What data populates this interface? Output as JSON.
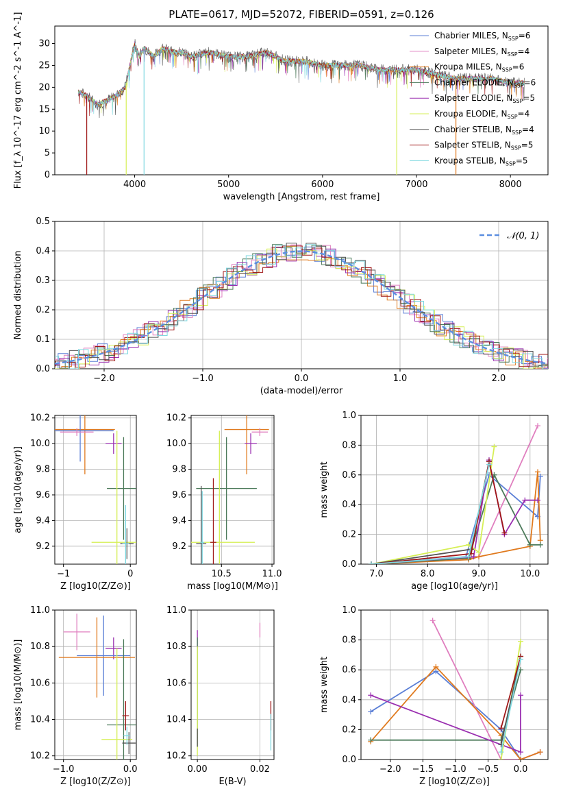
{
  "figure_title": "PLATE=0617, MJD=52072, FIBERID=0591, z=0.126",
  "palette": {
    "Chabrier MILES": "#5b7fd6",
    "Salpeter MILES": "#e07fbf",
    "Kroupa MILES": "#e07a1e",
    "Chabrier ELODIE": "#4c7a5a",
    "Salpeter ELODIE": "#9a2fb0",
    "Kroupa ELODIE": "#d6ef55",
    "Chabrier STELIB": "#555555",
    "Salpeter STELIB": "#a01818",
    "Kroupa STELIB": "#7fd8e0",
    "normal": "#5b8ee0"
  },
  "chart_data": [
    {
      "id": "spectrum",
      "type": "line",
      "xlabel": "wavelength [Angstrom, rest frame]",
      "ylabel": "Flux [f_λ 10^-17 erg cm^-2 s^-1 A^-1]",
      "xlim": [
        3150,
        8400
      ],
      "ylim": [
        0,
        34
      ],
      "xticks": [
        4000,
        5000,
        6000,
        7000,
        8000
      ],
      "yticks": [
        0,
        5,
        10,
        15,
        20,
        25,
        30
      ],
      "legend": [
        {
          "name": "Chabrier MILES",
          "nssp": "6"
        },
        {
          "name": "Salpeter MILES",
          "nssp": "4"
        },
        {
          "name": "Kroupa MILES",
          "nssp": "6"
        },
        {
          "name": "Chabrier ELODIE",
          "nssp": "6"
        },
        {
          "name": "Salpeter ELODIE",
          "nssp": "5"
        },
        {
          "name": "Kroupa ELODIE",
          "nssp": "4"
        },
        {
          "name": "Chabrier STELIB",
          "nssp": "4"
        },
        {
          "name": "Salpeter STELIB",
          "nssp": "5"
        },
        {
          "name": "Kroupa STELIB",
          "nssp": "5"
        }
      ],
      "legend_position": "top-right",
      "data_trace": {
        "x": [
          3400,
          3500,
          3600,
          3700,
          3800,
          3900,
          3950,
          4000,
          4050,
          4100,
          4200,
          4300,
          4400,
          4500,
          4600,
          4800,
          5000,
          5200,
          5400,
          5600,
          5800,
          6000,
          6200,
          6400,
          6600,
          6800,
          7000,
          7200,
          7400,
          7600,
          7800,
          8000,
          8150
        ],
        "y": [
          19,
          18,
          16,
          17,
          18,
          20,
          25,
          30,
          27,
          29,
          27,
          29,
          28,
          28,
          27,
          28,
          27,
          27,
          28,
          26,
          26,
          25,
          25,
          25,
          24,
          24,
          24,
          23,
          22,
          22,
          22,
          21,
          21
        ]
      },
      "drops": [
        {
          "x": 3490,
          "y": 0
        },
        {
          "x": 3910,
          "y": 0
        },
        {
          "x": 4100,
          "y": 0
        },
        {
          "x": 6790,
          "y": 0
        },
        {
          "x": 7420,
          "y": 0
        }
      ]
    },
    {
      "id": "residuals",
      "type": "step",
      "xlabel": "(data-model)/error",
      "ylabel": "Normed distribution",
      "xlim": [
        -2.5,
        2.5
      ],
      "ylim": [
        0,
        0.5
      ],
      "xticks": [
        -2,
        -1,
        0,
        1,
        2
      ],
      "yticks": [
        0.0,
        0.1,
        0.2,
        0.3,
        0.4,
        0.5
      ],
      "legend": [
        {
          "name": "𝒩(0, 1)"
        }
      ],
      "legend_position": "top-right",
      "curve": "normal(0,1)"
    },
    {
      "id": "age_vs_Z",
      "type": "errorbar",
      "xlabel": "Z [log10(Z/Z⊙)]",
      "ylabel": "age  [log10(age/yr)]",
      "xlim": [
        -1.13,
        0.09
      ],
      "ylim": [
        9.06,
        10.22
      ],
      "xticks": [
        -1,
        0
      ],
      "yticks": [
        9.2,
        9.4,
        9.6,
        9.8,
        10.0,
        10.2
      ],
      "points": [
        {
          "model": "Kroupa MILES",
          "x": -0.68,
          "xerr": 0.45,
          "y": 10.11,
          "yerr": 0.35
        },
        {
          "model": "Chabrier MILES",
          "x": -0.75,
          "xerr": 0.5,
          "y": 10.1,
          "yerr": 0.24
        },
        {
          "model": "Salpeter MILES",
          "x": -0.8,
          "xerr": 0.25,
          "y": 10.09,
          "yerr": 0.03
        },
        {
          "model": "Salpeter ELODIE",
          "x": -0.25,
          "xerr": 0.12,
          "y": 10.0,
          "yerr": 0.08
        },
        {
          "model": "Chabrier ELODIE",
          "x": -0.1,
          "xerr": 0.25,
          "y": 9.65,
          "yerr": 0.4
        },
        {
          "model": "Kroupa ELODIE",
          "x": -0.2,
          "xerr": 0.38,
          "y": 9.23,
          "yerr": 0.87
        },
        {
          "model": "Chabrier STELIB",
          "x": -0.05,
          "xerr": 0.1,
          "y": 9.22,
          "yerr": 0.12
        },
        {
          "model": "Kroupa STELIB",
          "x": -0.07,
          "xerr": 0.05,
          "y": 9.22,
          "yerr": 0.3
        }
      ]
    },
    {
      "id": "age_vs_mass",
      "type": "errorbar",
      "xlabel": "mass [log10(M/M⊙)]",
      "ylabel": "",
      "xlim": [
        10.2,
        11.02
      ],
      "ylim": [
        9.06,
        10.22
      ],
      "xticks": [
        10.5,
        11.0
      ],
      "yticks": [
        9.2,
        9.4,
        9.6,
        9.8,
        10.0,
        10.2
      ],
      "points": [
        {
          "model": "Kroupa MILES",
          "x": 10.75,
          "xerr": 0.22,
          "y": 10.11,
          "yerr": 0.35
        },
        {
          "model": "Salpeter MILES",
          "x": 10.88,
          "xerr": 0.08,
          "y": 10.09,
          "yerr": 0.03
        },
        {
          "model": "Salpeter ELODIE",
          "x": 10.79,
          "xerr": 0.06,
          "y": 10.0,
          "yerr": 0.08
        },
        {
          "model": "Chabrier ELODIE",
          "x": 10.55,
          "xerr": 0.3,
          "y": 9.65,
          "yerr": 0.4
        },
        {
          "model": "Kroupa ELODIE",
          "x": 10.48,
          "xerr": 0.35,
          "y": 9.23,
          "yerr": 0.87
        },
        {
          "model": "Chabrier STELIB",
          "x": 10.3,
          "xerr": 0.05,
          "y": 9.22,
          "yerr": 0.45
        },
        {
          "model": "Salpeter STELIB",
          "x": 10.42,
          "xerr": 0.03,
          "y": 9.23,
          "yerr": 0.5
        },
        {
          "model": "Kroupa STELIB",
          "x": 10.31,
          "xerr": 0.02,
          "y": 9.23,
          "yerr": 0.4
        }
      ]
    },
    {
      "id": "mass_weight_vs_age",
      "type": "line",
      "xlabel": "age  [log10(age/yr)]",
      "ylabel": "mass weight",
      "xlim": [
        6.7,
        10.35
      ],
      "ylim": [
        0,
        1
      ],
      "xticks": [
        7,
        8,
        9,
        10
      ],
      "yticks": [
        0.0,
        0.2,
        0.4,
        0.6,
        0.8,
        1.0
      ],
      "series": [
        {
          "model": "Chabrier MILES",
          "x": [
            6.9,
            8.0,
            8.75,
            9.2,
            10.15,
            10.2
          ],
          "y": [
            0.0,
            0.03,
            0.05,
            0.6,
            0.32,
            0.59
          ]
        },
        {
          "model": "Salpeter MILES",
          "x": [
            6.9,
            8.8,
            9.0,
            10.15
          ],
          "y": [
            0.0,
            0.04,
            0.05,
            0.93
          ]
        },
        {
          "model": "Kroupa MILES",
          "x": [
            6.9,
            8.8,
            9.0,
            10.0,
            10.15,
            10.2
          ],
          "y": [
            0.0,
            0.03,
            0.05,
            0.12,
            0.62,
            0.16
          ]
        },
        {
          "model": "Chabrier ELODIE",
          "x": [
            6.9,
            8.8,
            9.3,
            10.0,
            10.2
          ],
          "y": [
            0.0,
            0.04,
            0.6,
            0.13,
            0.13
          ]
        },
        {
          "model": "Salpeter ELODIE",
          "x": [
            6.9,
            8.9,
            9.2,
            9.5,
            9.9,
            10.15
          ],
          "y": [
            0.0,
            0.05,
            0.7,
            0.2,
            0.43,
            0.43
          ]
        },
        {
          "model": "Kroupa ELODIE",
          "x": [
            6.9,
            8.8,
            9.0,
            9.3
          ],
          "y": [
            0.0,
            0.13,
            0.08,
            0.79
          ]
        },
        {
          "model": "Chabrier STELIB",
          "x": [
            6.9,
            8.85,
            9.2
          ],
          "y": [
            0.0,
            0.1,
            0.69
          ]
        },
        {
          "model": "Salpeter STELIB",
          "x": [
            6.9,
            8.85,
            9.2,
            9.5
          ],
          "y": [
            0.0,
            0.07,
            0.69,
            0.21
          ]
        },
        {
          "model": "Kroupa STELIB",
          "x": [
            6.9,
            8.8,
            9.2
          ],
          "y": [
            0.0,
            0.05,
            0.67
          ]
        }
      ]
    },
    {
      "id": "mass_vs_Z",
      "type": "errorbar",
      "xlabel": "Z [log10(Z/Z⊙)]",
      "ylabel": "mass [log10(M/M⊙)]",
      "xlim": [
        -1.13,
        0.09
      ],
      "ylim": [
        10.18,
        11.0
      ],
      "xticks": [
        -1,
        0
      ],
      "yticks": [
        10.2,
        10.4,
        10.6,
        10.8,
        11.0
      ],
      "points": [
        {
          "model": "Salpeter MILES",
          "x": -0.8,
          "xerr": 0.2,
          "y": 10.88,
          "yerr": 0.1
        },
        {
          "model": "Salpeter ELODIE",
          "x": -0.25,
          "xerr": 0.12,
          "y": 10.79,
          "yerr": 0.06
        },
        {
          "model": "Chabrier MILES",
          "x": -0.4,
          "xerr": 0.4,
          "y": 10.75,
          "yerr": 0.22
        },
        {
          "model": "Kroupa MILES",
          "x": -0.5,
          "xerr": 0.57,
          "y": 10.74,
          "yerr": 0.22
        },
        {
          "model": "Chabrier ELODIE",
          "x": -0.1,
          "xerr": 0.25,
          "y": 10.37,
          "yerr": 0.47
        },
        {
          "model": "Kroupa ELODIE",
          "x": -0.2,
          "xerr": 0.23,
          "y": 10.29,
          "yerr": 0.5
        },
        {
          "model": "Chabrier STELIB",
          "x": -0.02,
          "xerr": 0.1,
          "y": 10.27,
          "yerr": 0.06
        },
        {
          "model": "Salpeter STELIB",
          "x": -0.07,
          "xerr": 0.05,
          "y": 10.42,
          "yerr": 0.08
        },
        {
          "model": "Kroupa STELIB",
          "x": -0.05,
          "xerr": 0.05,
          "y": 10.31,
          "yerr": 0.05
        }
      ]
    },
    {
      "id": "mass_vs_ebv",
      "type": "errorbar",
      "xlabel": "E(B-V)",
      "ylabel": "",
      "xlim": [
        -0.002,
        0.0245
      ],
      "ylim": [
        10.18,
        11.0
      ],
      "xticks": [
        0.0,
        0.02
      ],
      "yticks": [
        10.2,
        10.4,
        10.6,
        10.8,
        11.0
      ],
      "points": [
        {
          "model": "Salpeter MILES",
          "x": 0.02,
          "xerr": 0.0001,
          "y": 10.89,
          "yerr": 0.04
        },
        {
          "model": "Salpeter ELODIE",
          "x": 0.0,
          "xerr": 0.0001,
          "y": 10.84,
          "yerr": 0.05
        },
        {
          "model": "Chabrier ELODIE",
          "x": 0.0,
          "xerr": 0.0001,
          "y": 10.55,
          "yerr": 0.3
        },
        {
          "model": "Kroupa ELODIE",
          "x": 0.0,
          "xerr": 0.0001,
          "y": 10.5,
          "yerr": 0.3
        },
        {
          "model": "Salpeter STELIB",
          "x": 0.0235,
          "xerr": 0.0001,
          "y": 10.42,
          "yerr": 0.08
        },
        {
          "model": "Kroupa STELIB",
          "x": 0.0235,
          "xerr": 0.0001,
          "y": 10.33,
          "yerr": 0.1
        },
        {
          "model": "Chabrier STELIB",
          "x": 0.0,
          "xerr": 0.0001,
          "y": 10.3,
          "yerr": 0.05
        }
      ]
    },
    {
      "id": "mass_weight_vs_Z",
      "type": "line",
      "xlabel": "Z [log10(Z/Z⊙)]",
      "ylabel": "mass weight",
      "xlim": [
        -2.45,
        0.42
      ],
      "ylim": [
        0,
        1
      ],
      "xticks": [
        -2.0,
        -1.5,
        -1.0,
        -0.5,
        0.0
      ],
      "yticks": [
        0.0,
        0.2,
        0.4,
        0.6,
        0.8,
        1.0
      ],
      "series": [
        {
          "model": "Chabrier MILES",
          "x": [
            -2.3,
            -1.3,
            -0.3,
            0.0,
            0.3
          ],
          "y": [
            0.32,
            0.59,
            0.2,
            0.0,
            0.05
          ]
        },
        {
          "model": "Salpeter MILES",
          "x": [
            -1.35,
            -0.3,
            0.0,
            0.3
          ],
          "y": [
            0.93,
            0.0,
            0.0,
            0.05
          ]
        },
        {
          "model": "Kroupa MILES",
          "x": [
            -2.3,
            -1.3,
            -0.3,
            0.0,
            0.3
          ],
          "y": [
            0.12,
            0.62,
            0.16,
            0.0,
            0.05
          ]
        },
        {
          "model": "Chabrier ELODIE",
          "x": [
            -2.3,
            -0.3,
            0.0
          ],
          "y": [
            0.13,
            0.13,
            0.6
          ]
        },
        {
          "model": "Salpeter ELODIE",
          "x": [
            -2.3,
            0.0,
            0.0
          ],
          "y": [
            0.43,
            0.05,
            0.43
          ]
        },
        {
          "model": "Kroupa ELODIE",
          "x": [
            -0.3,
            0.0
          ],
          "y": [
            0.0,
            0.79
          ]
        },
        {
          "model": "Chabrier STELIB",
          "x": [
            -0.3,
            0.0
          ],
          "y": [
            0.1,
            0.69
          ]
        },
        {
          "model": "Salpeter STELIB",
          "x": [
            -0.3,
            0.0
          ],
          "y": [
            0.21,
            0.69
          ]
        },
        {
          "model": "Kroupa STELIB",
          "x": [
            -0.3,
            0.0
          ],
          "y": [
            0.05,
            0.67
          ]
        }
      ]
    }
  ]
}
